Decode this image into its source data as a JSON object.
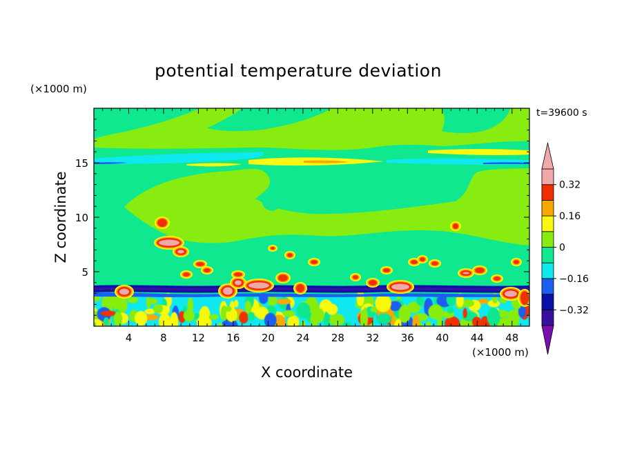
{
  "chart_data": {
    "type": "heatmap",
    "title": "potential temperature deviation",
    "xlabel": "X coordinate",
    "ylabel": "Z coordinate",
    "x_unit": "(×1000 m)",
    "y_unit": "(×1000 m)",
    "time_label": "t=39600 s",
    "xlim": [
      0,
      50
    ],
    "ylim": [
      0,
      20
    ],
    "x_ticks": [
      4,
      8,
      12,
      16,
      20,
      24,
      28,
      32,
      36,
      40,
      44,
      48
    ],
    "y_ticks": [
      5,
      10,
      15
    ],
    "colorbar": {
      "levels": [
        -0.4,
        -0.32,
        -0.24,
        -0.16,
        -0.08,
        0,
        0.08,
        0.16,
        0.24,
        0.32,
        0.4
      ],
      "tick_labels": [
        {
          "value": 0.32,
          "label": "0.32"
        },
        {
          "value": 0.16,
          "label": "0.16"
        },
        {
          "value": 0,
          "label": "0"
        },
        {
          "value": -0.16,
          "label": "−0.16"
        },
        {
          "value": -0.32,
          "label": "−0.32"
        }
      ],
      "colors": [
        "#7a0fb0",
        "#3a0fa0",
        "#0a10a8",
        "#1a5ff0",
        "#10e8f0",
        "#10e890",
        "#88ec10",
        "#f8f810",
        "#f8a800",
        "#f03000",
        "#f0a8a8"
      ],
      "extend": "both"
    }
  }
}
